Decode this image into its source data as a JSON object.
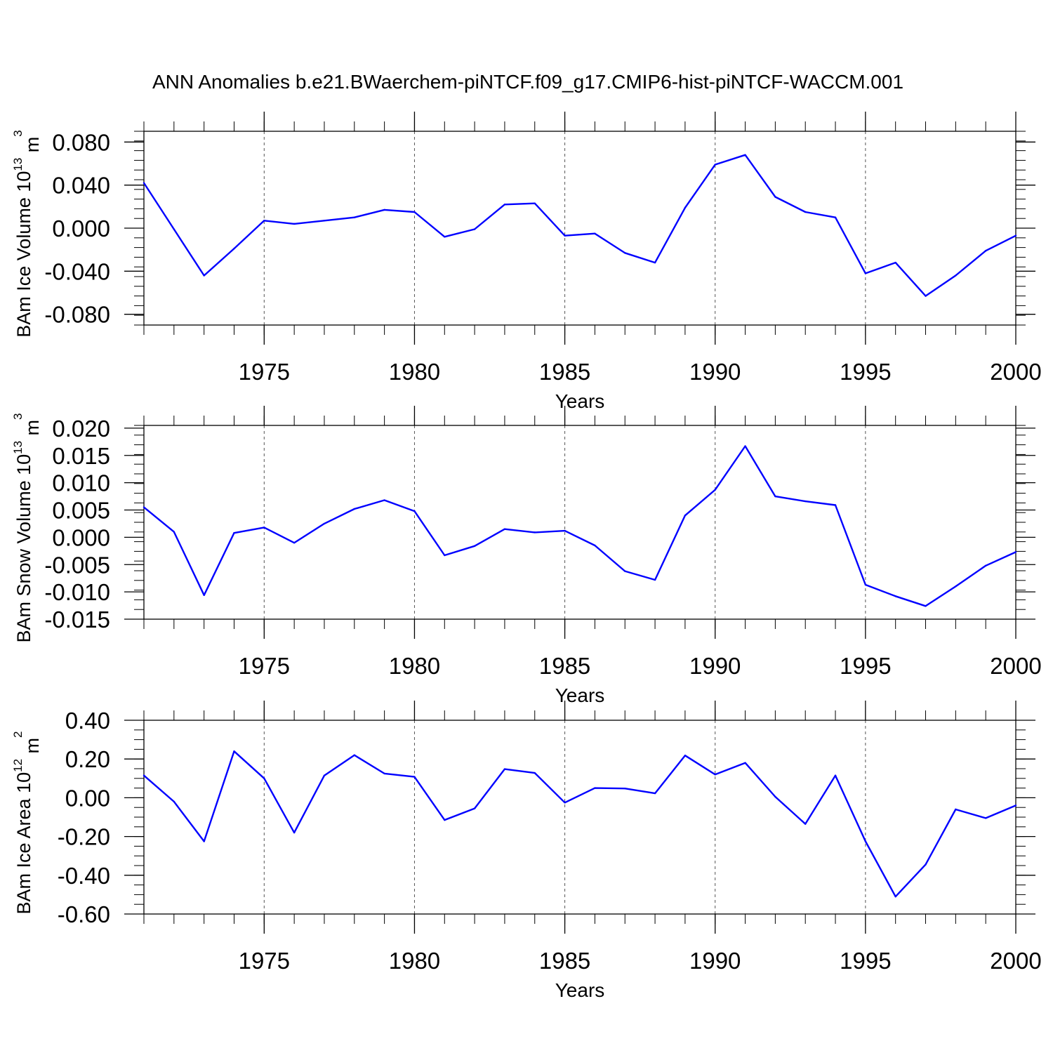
{
  "title": "ANN Anomalies b.e21.BWaerchem-piNTCF.f09_g17.CMIP6-hist-piNTCF-WACCM.001",
  "colors": {
    "series": "#0000ff",
    "axis": "#000000",
    "grid": "#555555"
  },
  "chart_data": [
    {
      "type": "line",
      "ylabel": {
        "main": "BAm Ice Volume 10",
        "exp": "13",
        "unit": " m",
        "unit_exp": "3"
      },
      "xlabel": "Years",
      "xlim": [
        1971,
        2000
      ],
      "ylim": [
        -0.09,
        0.09
      ],
      "x_ticks": [
        1975,
        1980,
        1985,
        1990,
        1995,
        2000
      ],
      "y_ticks": [
        0.08,
        0.04,
        0.0,
        -0.04,
        -0.08
      ],
      "y_tick_labels": [
        "0.080",
        "0.040",
        "0.000",
        "-0.040",
        "-0.080"
      ],
      "grid_x": [
        1975,
        1980,
        1985,
        1990,
        1995
      ],
      "x": [
        1971,
        1972,
        1973,
        1974,
        1975,
        1976,
        1977,
        1978,
        1979,
        1980,
        1981,
        1982,
        1983,
        1984,
        1985,
        1986,
        1987,
        1988,
        1989,
        1990,
        1991,
        1992,
        1993,
        1994,
        1995,
        1996,
        1997,
        1998,
        1999,
        2000
      ],
      "values": [
        0.042,
        -0.001,
        -0.044,
        -0.019,
        0.007,
        0.004,
        0.007,
        0.01,
        0.017,
        0.015,
        -0.008,
        -0.001,
        0.022,
        0.023,
        -0.007,
        -0.005,
        -0.023,
        -0.032,
        0.019,
        0.059,
        0.068,
        0.029,
        0.015,
        0.01,
        -0.042,
        -0.032,
        -0.063,
        -0.044,
        -0.021,
        -0.007
      ]
    },
    {
      "type": "line",
      "ylabel": {
        "main": "BAm Snow Volume 10",
        "exp": "13",
        "unit": " m",
        "unit_exp": "3"
      },
      "xlabel": "Years",
      "xlim": [
        1971,
        2000
      ],
      "ylim": [
        -0.015,
        0.0205
      ],
      "x_ticks": [
        1975,
        1980,
        1985,
        1990,
        1995,
        2000
      ],
      "y_ticks": [
        0.02,
        0.015,
        0.01,
        0.005,
        0.0,
        -0.005,
        -0.01,
        -0.015
      ],
      "y_tick_labels": [
        "0.020",
        "0.015",
        "0.010",
        "0.005",
        "0.000",
        "-0.005",
        "-0.010",
        "-0.015"
      ],
      "grid_x": [
        1975,
        1980,
        1985,
        1990,
        1995
      ],
      "x": [
        1971,
        1972,
        1973,
        1974,
        1975,
        1976,
        1977,
        1978,
        1979,
        1980,
        1981,
        1982,
        1983,
        1984,
        1985,
        1986,
        1987,
        1988,
        1989,
        1990,
        1991,
        1992,
        1993,
        1994,
        1995,
        1996,
        1997,
        1998,
        1999,
        2000
      ],
      "values": [
        0.0055,
        0.001,
        -0.0106,
        0.0008,
        0.0018,
        -0.001,
        0.0025,
        0.0052,
        0.0068,
        0.0048,
        -0.0033,
        -0.0016,
        0.0015,
        0.0009,
        0.0012,
        -0.0015,
        -0.0062,
        -0.0078,
        0.004,
        0.0087,
        0.0167,
        0.0075,
        0.0066,
        0.0059,
        -0.0087,
        -0.0108,
        -0.0126,
        -0.009,
        -0.0052,
        -0.0027
      ]
    },
    {
      "type": "line",
      "ylabel": {
        "main": "BAm Ice Area 10",
        "exp": "12",
        "unit": " m",
        "unit_exp": "2"
      },
      "xlabel": "Years",
      "xlim": [
        1971,
        2000
      ],
      "ylim": [
        -0.6,
        0.4
      ],
      "x_ticks": [
        1975,
        1980,
        1985,
        1990,
        1995,
        2000
      ],
      "y_ticks": [
        0.4,
        0.2,
        0.0,
        -0.2,
        -0.4,
        -0.6
      ],
      "y_tick_labels": [
        "0.40",
        "0.20",
        "0.00",
        "-0.20",
        "-0.40",
        "-0.60"
      ],
      "grid_x": [
        1975,
        1980,
        1985,
        1990,
        1995
      ],
      "x": [
        1971,
        1972,
        1973,
        1974,
        1975,
        1976,
        1977,
        1978,
        1979,
        1980,
        1981,
        1982,
        1983,
        1984,
        1985,
        1986,
        1987,
        1988,
        1989,
        1990,
        1991,
        1992,
        1993,
        1994,
        1995,
        1996,
        1997,
        1998,
        1999,
        2000
      ],
      "values": [
        0.115,
        -0.02,
        -0.225,
        0.24,
        0.1,
        -0.18,
        0.115,
        0.22,
        0.125,
        0.108,
        -0.115,
        -0.055,
        0.148,
        0.128,
        -0.025,
        0.05,
        0.048,
        0.023,
        0.218,
        0.12,
        0.18,
        0.005,
        -0.135,
        0.115,
        -0.225,
        -0.51,
        -0.345,
        -0.06,
        -0.105,
        -0.04
      ]
    }
  ]
}
